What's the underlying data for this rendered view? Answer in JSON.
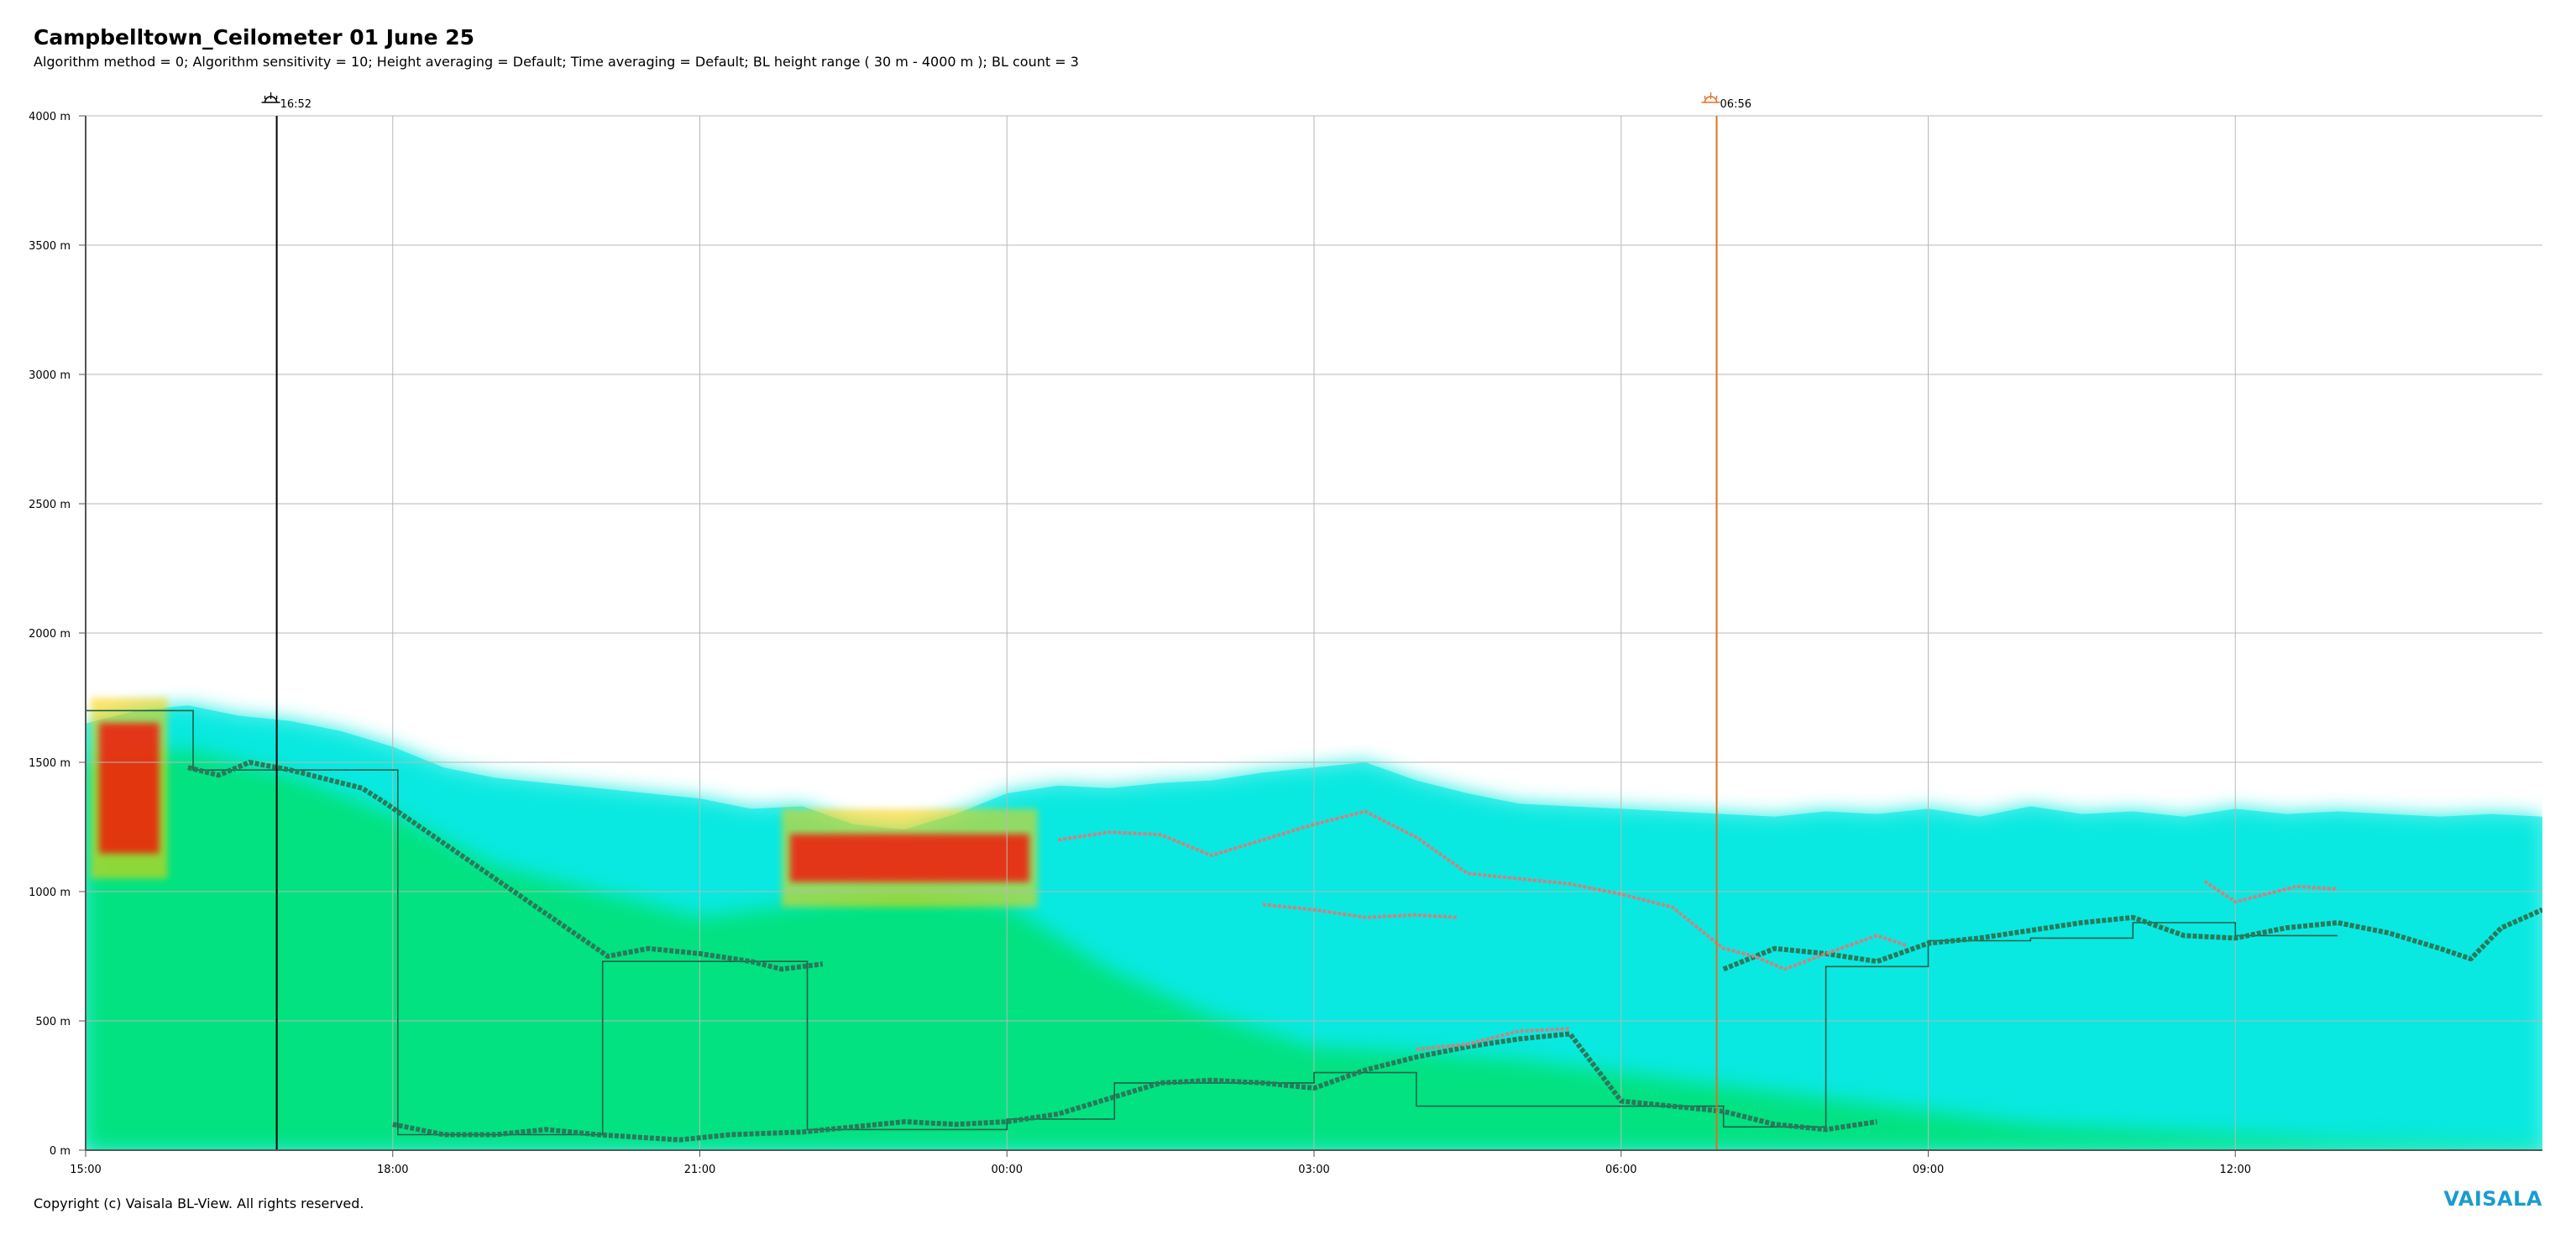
{
  "header": {
    "title": "Campbelltown_Ceilometer 01 June 25",
    "subtitle": "Algorithm method = 0; Algorithm sensitivity = 10; Height averaging = Default; Time averaging = Default; BL height range ( 30 m - 4000 m ); BL count = 3"
  },
  "footer": {
    "copyright": "Copyright (c) Vaisala BL-View. All rights reserved.",
    "brand": "VAISALA"
  },
  "chart_data": {
    "type": "heatmap",
    "title": "Campbelltown_Ceilometer 01 June 25",
    "xlabel": "",
    "ylabel": "",
    "x_range_hours": [
      0,
      24
    ],
    "x_origin_label": "15:00",
    "xlim": [
      "15:00",
      "14:59"
    ],
    "ylim": [
      0,
      4000
    ],
    "y_ticks": [
      {
        "value": 0,
        "label": "0 m"
      },
      {
        "value": 500,
        "label": "500 m"
      },
      {
        "value": 1000,
        "label": "1000 m"
      },
      {
        "value": 1500,
        "label": "1500 m"
      },
      {
        "value": 2000,
        "label": "2000 m"
      },
      {
        "value": 2500,
        "label": "2500 m"
      },
      {
        "value": 3000,
        "label": "3000 m"
      },
      {
        "value": 3500,
        "label": "3500 m"
      },
      {
        "value": 4000,
        "label": "4000 m"
      }
    ],
    "x_ticks": [
      {
        "hour": 0,
        "label": "15:00"
      },
      {
        "hour": 3,
        "label": "18:00"
      },
      {
        "hour": 6,
        "label": "21:00"
      },
      {
        "hour": 9,
        "label": "00:00"
      },
      {
        "hour": 12,
        "label": "03:00"
      },
      {
        "hour": 15,
        "label": "06:00"
      },
      {
        "hour": 18,
        "label": "09:00"
      },
      {
        "hour": 21,
        "label": "12:00"
      }
    ],
    "grid": true,
    "events": [
      {
        "name": "sunset",
        "label": "16:52",
        "hour": 1.8667,
        "color": "#000000",
        "icon": "sunset-icon"
      },
      {
        "name": "sunrise",
        "label": "06:56",
        "hour": 15.9333,
        "color": "#e07020",
        "icon": "sunrise-icon"
      }
    ],
    "colors": {
      "low_backscatter": "#00e8e0",
      "mid_backscatter": "#00e060",
      "high_backscatter": "#ff0000",
      "bl_layer": "#2a7a5a",
      "bl_secondary": "#d08080",
      "bl_step": "#1f5f48",
      "sunset": "#000000",
      "sunrise": "#e07020"
    },
    "aerosol_top": [
      [
        0,
        1650
      ],
      [
        0.5,
        1700
      ],
      [
        1,
        1720
      ],
      [
        1.5,
        1680
      ],
      [
        2,
        1660
      ],
      [
        2.5,
        1620
      ],
      [
        3,
        1560
      ],
      [
        3.5,
        1480
      ],
      [
        4,
        1440
      ],
      [
        4.5,
        1420
      ],
      [
        5,
        1400
      ],
      [
        5.5,
        1380
      ],
      [
        6,
        1360
      ],
      [
        6.5,
        1320
      ],
      [
        7,
        1330
      ],
      [
        7.5,
        1260
      ],
      [
        8,
        1240
      ],
      [
        8.5,
        1300
      ],
      [
        9,
        1380
      ],
      [
        9.5,
        1410
      ],
      [
        10,
        1400
      ],
      [
        10.5,
        1420
      ],
      [
        11,
        1430
      ],
      [
        11.5,
        1460
      ],
      [
        12,
        1480
      ],
      [
        12.5,
        1500
      ],
      [
        13,
        1430
      ],
      [
        13.5,
        1380
      ],
      [
        14,
        1340
      ],
      [
        14.5,
        1330
      ],
      [
        15,
        1320
      ],
      [
        15.5,
        1310
      ],
      [
        16,
        1300
      ],
      [
        16.5,
        1290
      ],
      [
        17,
        1310
      ],
      [
        17.5,
        1300
      ],
      [
        18,
        1320
      ],
      [
        18.5,
        1290
      ],
      [
        19,
        1330
      ],
      [
        19.5,
        1300
      ],
      [
        20,
        1310
      ],
      [
        20.5,
        1290
      ],
      [
        21,
        1320
      ],
      [
        21.5,
        1300
      ],
      [
        22,
        1310
      ],
      [
        22.5,
        1300
      ],
      [
        23,
        1290
      ],
      [
        23.5,
        1300
      ],
      [
        24,
        1290
      ]
    ],
    "green_top": [
      [
        0,
        1500
      ],
      [
        1,
        1550
      ],
      [
        2,
        1450
      ],
      [
        3,
        1300
      ],
      [
        4,
        1100
      ],
      [
        5,
        1000
      ],
      [
        6,
        900
      ],
      [
        7,
        950
      ],
      [
        8,
        1000
      ],
      [
        9,
        950
      ],
      [
        10,
        700
      ],
      [
        11,
        520
      ],
      [
        12,
        400
      ],
      [
        13,
        380
      ],
      [
        14,
        350
      ],
      [
        15,
        300
      ],
      [
        16,
        250
      ],
      [
        17,
        200
      ],
      [
        18,
        150
      ],
      [
        19,
        100
      ],
      [
        20,
        80
      ],
      [
        21,
        60
      ],
      [
        22,
        40
      ],
      [
        23,
        30
      ],
      [
        24,
        20
      ]
    ],
    "bl_step_series": [
      [
        0,
        1700
      ],
      [
        1.05,
        1700
      ],
      [
        1.05,
        1470
      ],
      [
        3.05,
        1470
      ],
      [
        3.05,
        60
      ],
      [
        5.05,
        60
      ],
      [
        5.05,
        730
      ],
      [
        7.05,
        730
      ],
      [
        7.05,
        80
      ],
      [
        9.0,
        80
      ],
      [
        9.0,
        120
      ],
      [
        10.05,
        120
      ],
      [
        10.05,
        260
      ],
      [
        12.0,
        260
      ],
      [
        12.0,
        300
      ],
      [
        13.0,
        300
      ],
      [
        13.0,
        170
      ],
      [
        16.0,
        170
      ],
      [
        16.0,
        90
      ],
      [
        17.0,
        90
      ],
      [
        17.0,
        710
      ],
      [
        18.0,
        710
      ],
      [
        18.0,
        810
      ],
      [
        19.0,
        810
      ],
      [
        19.0,
        820
      ],
      [
        20.0,
        820
      ],
      [
        20.0,
        880
      ],
      [
        21.0,
        880
      ],
      [
        21.0,
        830
      ],
      [
        22.0,
        830
      ]
    ],
    "bl_layer_1": [
      [
        1.0,
        1480
      ],
      [
        1.3,
        1450
      ],
      [
        1.6,
        1500
      ],
      [
        2.0,
        1470
      ],
      [
        2.3,
        1440
      ],
      [
        2.7,
        1400
      ],
      [
        2.9,
        1350
      ],
      [
        5.1,
        750
      ],
      [
        5.5,
        780
      ],
      [
        6.0,
        760
      ],
      [
        6.5,
        730
      ],
      [
        6.8,
        700
      ],
      [
        7.2,
        720
      ]
    ],
    "bl_layer_2": [
      [
        16.0,
        700
      ],
      [
        16.5,
        780
      ],
      [
        17.0,
        760
      ],
      [
        17.5,
        730
      ],
      [
        18.0,
        800
      ],
      [
        18.5,
        820
      ],
      [
        19.0,
        850
      ],
      [
        19.5,
        880
      ],
      [
        20.0,
        900
      ],
      [
        20.5,
        830
      ],
      [
        21.0,
        820
      ],
      [
        21.5,
        860
      ],
      [
        22.0,
        880
      ],
      [
        22.5,
        840
      ],
      [
        23.0,
        780
      ],
      [
        23.3,
        740
      ],
      [
        23.6,
        860
      ],
      [
        24.0,
        930
      ]
    ],
    "bl_layer_low": [
      [
        3.0,
        100
      ],
      [
        3.5,
        60
      ],
      [
        4.0,
        60
      ],
      [
        4.5,
        80
      ],
      [
        5.0,
        60
      ],
      [
        5.8,
        40
      ],
      [
        6.3,
        60
      ],
      [
        7.0,
        70
      ],
      [
        7.5,
        90
      ],
      [
        8.0,
        110
      ],
      [
        8.5,
        100
      ],
      [
        9.0,
        110
      ],
      [
        9.5,
        140
      ],
      [
        10.0,
        200
      ],
      [
        10.5,
        260
      ],
      [
        11.0,
        270
      ],
      [
        11.5,
        260
      ],
      [
        12.0,
        240
      ],
      [
        12.5,
        310
      ],
      [
        13.0,
        360
      ],
      [
        13.5,
        400
      ],
      [
        14.0,
        430
      ],
      [
        14.5,
        450
      ],
      [
        15.0,
        190
      ],
      [
        15.5,
        170
      ],
      [
        16.0,
        150
      ],
      [
        16.5,
        100
      ],
      [
        17.0,
        80
      ],
      [
        17.5,
        110
      ]
    ],
    "bl_secondary_1": [
      [
        9.5,
        1200
      ],
      [
        10,
        1230
      ],
      [
        10.5,
        1220
      ],
      [
        11,
        1140
      ],
      [
        11.5,
        1200
      ],
      [
        12,
        1260
      ],
      [
        12.5,
        1310
      ],
      [
        13,
        1210
      ],
      [
        13.5,
        1070
      ],
      [
        14,
        1050
      ],
      [
        14.5,
        1030
      ],
      [
        15,
        990
      ],
      [
        15.5,
        940
      ],
      [
        16,
        780
      ],
      [
        16.3,
        750
      ],
      [
        16.6,
        700
      ],
      [
        17.0,
        760
      ],
      [
        17.5,
        830
      ],
      [
        17.8,
        790
      ]
    ],
    "bl_secondary_2": [
      [
        11.5,
        950
      ],
      [
        12.0,
        930
      ],
      [
        12.5,
        900
      ],
      [
        13.0,
        910
      ],
      [
        13.4,
        900
      ]
    ],
    "bl_secondary_3": [
      [
        20.7,
        1040
      ],
      [
        21.0,
        960
      ],
      [
        21.3,
        990
      ],
      [
        21.6,
        1020
      ],
      [
        22.0,
        1010
      ]
    ],
    "bl_secondary_4": [
      [
        13.0,
        390
      ],
      [
        13.5,
        410
      ],
      [
        14.0,
        460
      ],
      [
        14.5,
        470
      ]
    ],
    "dense_cloud": [
      {
        "h0": 0.05,
        "h1": 0.8,
        "z0": 1050,
        "z1": 1750
      },
      {
        "h0": 6.8,
        "h1": 9.3,
        "z0": 940,
        "z1": 1320
      }
    ]
  }
}
